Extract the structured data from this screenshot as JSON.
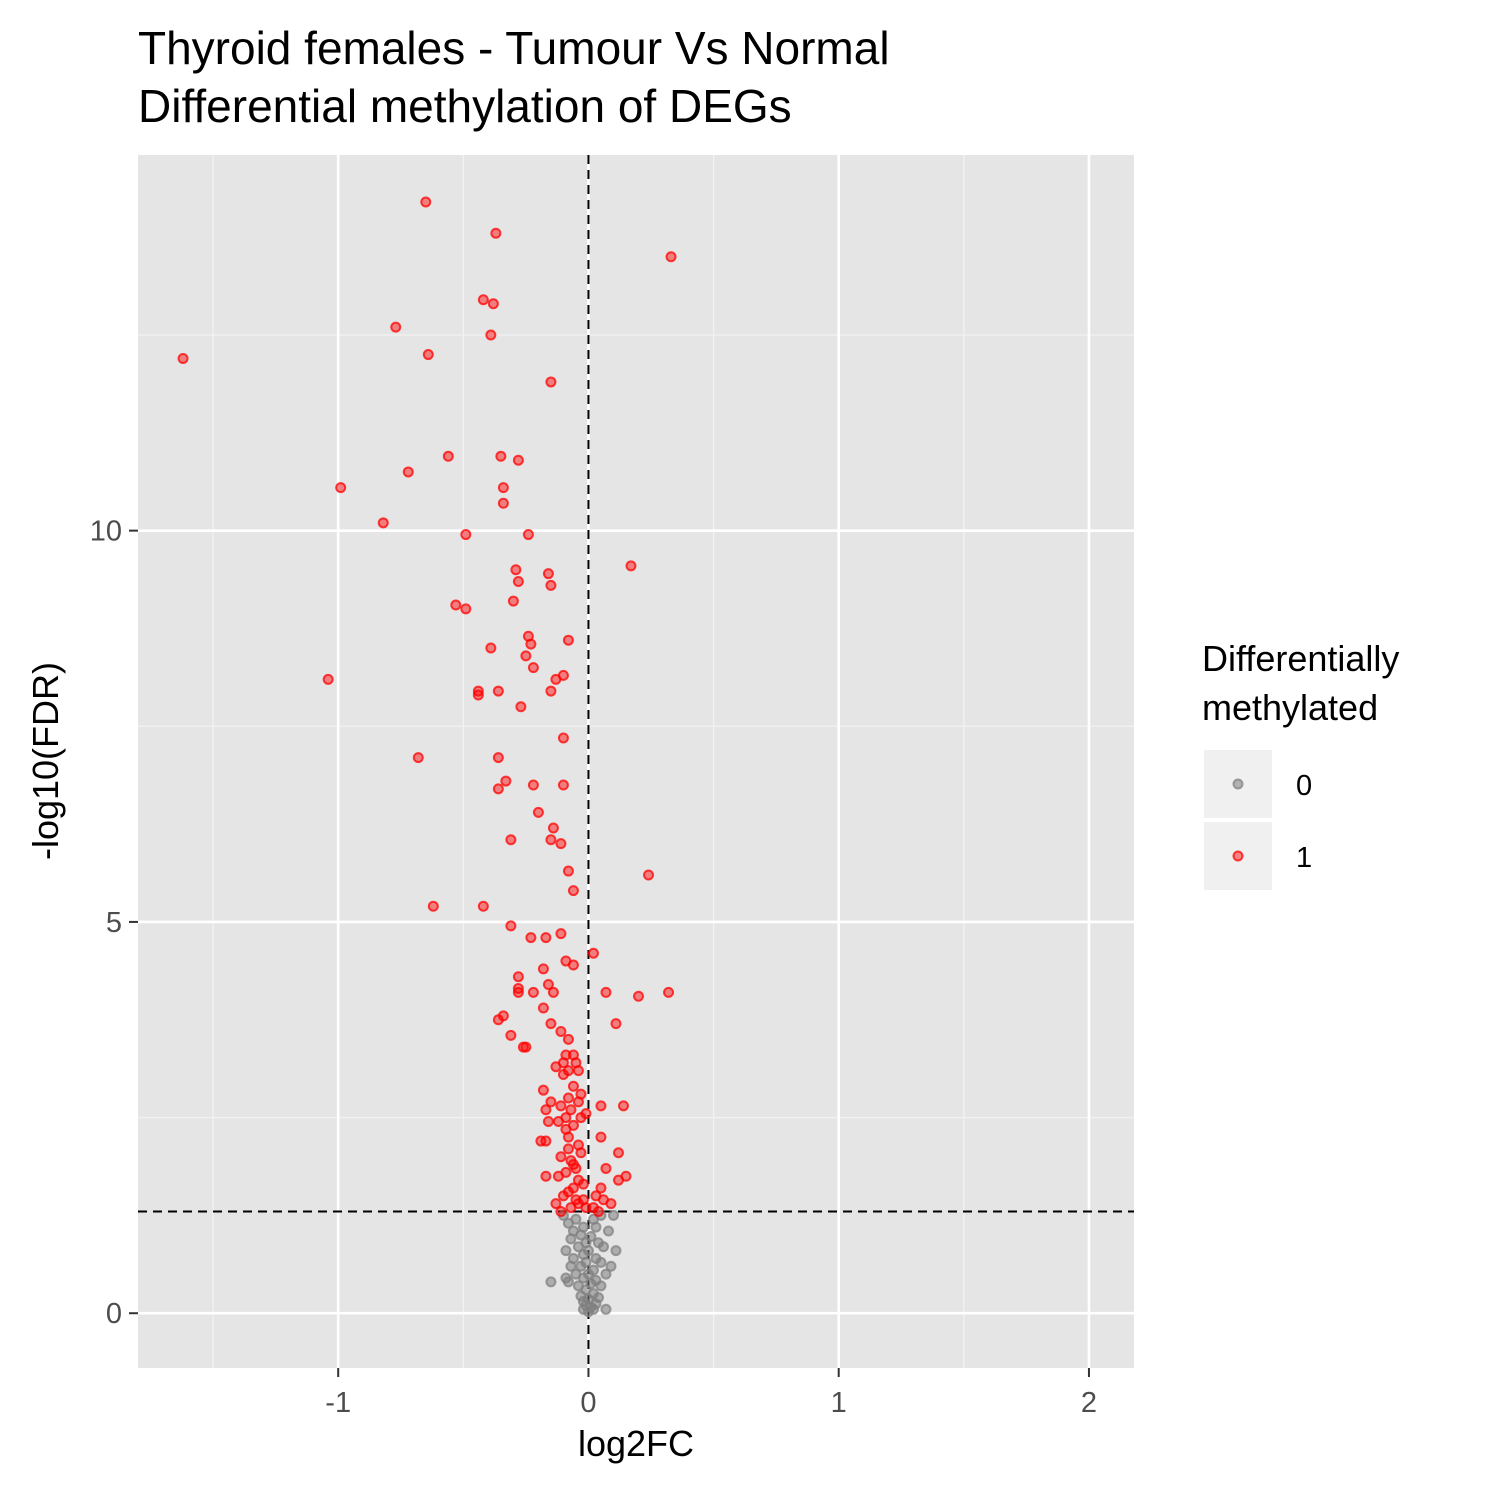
{
  "chart_data": {
    "type": "scatter",
    "title": "Thyroid females - Tumour Vs Normal",
    "subtitle": "Differential methylation of DEGs",
    "xlabel": "log2FC",
    "ylabel": "-log10(FDR)",
    "xlim": [
      -1.8,
      2.18
    ],
    "ylim": [
      -0.7,
      14.8
    ],
    "x_ticks": [
      -1,
      0,
      1,
      2
    ],
    "x_tick_labels": [
      "-1",
      "0",
      "1",
      "2"
    ],
    "y_ticks": [
      0,
      5,
      10
    ],
    "y_tick_labels": [
      "0",
      "5",
      "10"
    ],
    "x_minor_ticks": [
      -1.5,
      -0.5,
      0.5,
      1.5
    ],
    "y_minor_ticks": [
      2.5,
      7.5,
      12.5
    ],
    "reference_lines": {
      "vertical_x": 0,
      "horizontal_y": 1.3
    },
    "grid": true,
    "legend": {
      "title_line1": "Differentially",
      "title_line2": "methylated",
      "placement": "right",
      "entries": [
        {
          "label": "0",
          "color": "#808080"
        },
        {
          "label": "1",
          "color": "#ff0000"
        }
      ]
    },
    "series": [
      {
        "name": "1",
        "color": "#ff0000",
        "points": [
          [
            -0.65,
            14.2
          ],
          [
            -0.37,
            13.8
          ],
          [
            0.33,
            13.5
          ],
          [
            -0.42,
            12.95
          ],
          [
            -0.38,
            12.9
          ],
          [
            -0.77,
            12.6
          ],
          [
            -0.39,
            12.5
          ],
          [
            -1.62,
            12.2
          ],
          [
            -0.64,
            12.25
          ],
          [
            -0.15,
            11.9
          ],
          [
            -0.56,
            10.95
          ],
          [
            -0.35,
            10.95
          ],
          [
            -0.28,
            10.9
          ],
          [
            -0.72,
            10.75
          ],
          [
            -0.99,
            10.55
          ],
          [
            -0.34,
            10.55
          ],
          [
            -0.34,
            10.35
          ],
          [
            -0.82,
            10.1
          ],
          [
            -0.49,
            9.95
          ],
          [
            -0.24,
            9.95
          ],
          [
            0.17,
            9.55
          ],
          [
            -0.29,
            9.5
          ],
          [
            -0.16,
            9.45
          ],
          [
            -0.28,
            9.35
          ],
          [
            -0.15,
            9.3
          ],
          [
            -0.3,
            9.1
          ],
          [
            -0.53,
            9.05
          ],
          [
            -0.49,
            9.0
          ],
          [
            -0.24,
            8.65
          ],
          [
            -0.08,
            8.6
          ],
          [
            -0.23,
            8.55
          ],
          [
            -0.39,
            8.5
          ],
          [
            -0.25,
            8.4
          ],
          [
            -0.22,
            8.25
          ],
          [
            -0.1,
            8.15
          ],
          [
            -0.13,
            8.1
          ],
          [
            -1.04,
            8.1
          ],
          [
            -0.44,
            7.95
          ],
          [
            -0.36,
            7.95
          ],
          [
            -0.15,
            7.95
          ],
          [
            -0.44,
            7.9
          ],
          [
            -0.27,
            7.75
          ],
          [
            -0.1,
            7.35
          ],
          [
            -0.68,
            7.1
          ],
          [
            -0.36,
            7.1
          ],
          [
            -0.33,
            6.8
          ],
          [
            -0.22,
            6.75
          ],
          [
            -0.1,
            6.75
          ],
          [
            -0.36,
            6.7
          ],
          [
            -0.2,
            6.4
          ],
          [
            -0.14,
            6.2
          ],
          [
            -0.31,
            6.05
          ],
          [
            -0.15,
            6.05
          ],
          [
            -0.11,
            6.0
          ],
          [
            -0.08,
            5.65
          ],
          [
            0.24,
            5.6
          ],
          [
            -0.06,
            5.4
          ],
          [
            -0.62,
            5.2
          ],
          [
            -0.42,
            5.2
          ],
          [
            -0.31,
            4.95
          ],
          [
            -0.23,
            4.8
          ],
          [
            -0.17,
            4.8
          ],
          [
            -0.11,
            4.85
          ],
          [
            0.02,
            4.6
          ],
          [
            -0.09,
            4.5
          ],
          [
            -0.06,
            4.45
          ],
          [
            -0.18,
            4.4
          ],
          [
            -0.28,
            4.3
          ],
          [
            -0.16,
            4.2
          ],
          [
            -0.28,
            4.15
          ],
          [
            -0.28,
            4.1
          ],
          [
            -0.22,
            4.1
          ],
          [
            -0.14,
            4.1
          ],
          [
            0.07,
            4.1
          ],
          [
            0.2,
            4.05
          ],
          [
            0.32,
            4.1
          ],
          [
            -0.18,
            3.9
          ],
          [
            -0.34,
            3.8
          ],
          [
            -0.36,
            3.75
          ],
          [
            -0.15,
            3.7
          ],
          [
            0.11,
            3.7
          ],
          [
            -0.11,
            3.6
          ],
          [
            -0.31,
            3.55
          ],
          [
            -0.08,
            3.5
          ],
          [
            -0.26,
            3.4
          ],
          [
            -0.25,
            3.4
          ],
          [
            -0.09,
            3.3
          ],
          [
            -0.06,
            3.3
          ],
          [
            -0.1,
            3.2
          ],
          [
            -0.05,
            3.2
          ],
          [
            -0.13,
            3.15
          ],
          [
            -0.08,
            3.1
          ],
          [
            -0.04,
            3.1
          ],
          [
            -0.1,
            3.05
          ],
          [
            -0.06,
            2.9
          ],
          [
            -0.03,
            2.8
          ],
          [
            -0.18,
            2.85
          ],
          [
            -0.08,
            2.75
          ],
          [
            -0.04,
            2.7
          ],
          [
            -0.15,
            2.7
          ],
          [
            -0.11,
            2.65
          ],
          [
            0.14,
            2.65
          ],
          [
            0.05,
            2.65
          ],
          [
            -0.17,
            2.6
          ],
          [
            -0.07,
            2.6
          ],
          [
            -0.01,
            2.55
          ],
          [
            -0.03,
            2.5
          ],
          [
            -0.09,
            2.5
          ],
          [
            -0.12,
            2.45
          ],
          [
            -0.16,
            2.45
          ],
          [
            -0.06,
            2.4
          ],
          [
            -0.09,
            2.35
          ],
          [
            -0.08,
            2.25
          ],
          [
            0.05,
            2.25
          ],
          [
            -0.19,
            2.2
          ],
          [
            -0.17,
            2.2
          ],
          [
            -0.04,
            2.15
          ],
          [
            -0.08,
            2.1
          ],
          [
            0.12,
            2.05
          ],
          [
            -0.03,
            2.05
          ],
          [
            -0.11,
            2.0
          ],
          [
            -0.07,
            1.95
          ],
          [
            -0.06,
            1.9
          ],
          [
            0.07,
            1.85
          ],
          [
            -0.05,
            1.85
          ],
          [
            -0.09,
            1.8
          ],
          [
            -0.12,
            1.75
          ],
          [
            -0.17,
            1.75
          ],
          [
            0.15,
            1.75
          ],
          [
            0.12,
            1.7
          ],
          [
            -0.04,
            1.7
          ],
          [
            -0.02,
            1.65
          ],
          [
            -0.06,
            1.6
          ],
          [
            0.05,
            1.6
          ],
          [
            -0.08,
            1.55
          ],
          [
            0.03,
            1.5
          ],
          [
            -0.1,
            1.5
          ],
          [
            -0.05,
            1.45
          ],
          [
            -0.02,
            1.45
          ],
          [
            0.06,
            1.45
          ],
          [
            -0.13,
            1.4
          ],
          [
            -0.04,
            1.4
          ],
          [
            0.02,
            1.35
          ],
          [
            -0.07,
            1.35
          ],
          [
            -0.11,
            1.3
          ],
          [
            0.09,
            1.4
          ],
          [
            -0.01,
            1.35
          ],
          [
            0.04,
            1.3
          ]
        ]
      },
      {
        "name": "0",
        "color": "#808080",
        "points": [
          [
            -0.1,
            1.25
          ],
          [
            -0.05,
            1.2
          ],
          [
            0.02,
            1.2
          ],
          [
            0.05,
            1.25
          ],
          [
            0.1,
            1.25
          ],
          [
            -0.08,
            1.15
          ],
          [
            -0.02,
            1.1
          ],
          [
            0.03,
            1.1
          ],
          [
            -0.06,
            1.05
          ],
          [
            0.08,
            1.05
          ],
          [
            -0.03,
            1.0
          ],
          [
            0.01,
            0.98
          ],
          [
            -0.07,
            0.95
          ],
          [
            -0.01,
            0.9
          ],
          [
            0.04,
            0.9
          ],
          [
            -0.04,
            0.85
          ],
          [
            0.06,
            0.85
          ],
          [
            -0.09,
            0.8
          ],
          [
            0.0,
            0.8
          ],
          [
            0.11,
            0.8
          ],
          [
            -0.02,
            0.75
          ],
          [
            0.03,
            0.7
          ],
          [
            -0.06,
            0.7
          ],
          [
            -0.01,
            0.65
          ],
          [
            0.05,
            0.65
          ],
          [
            -0.03,
            0.6
          ],
          [
            0.02,
            0.55
          ],
          [
            -0.05,
            0.5
          ],
          [
            0.0,
            0.5
          ],
          [
            0.07,
            0.5
          ],
          [
            -0.02,
            0.45
          ],
          [
            0.03,
            0.42
          ],
          [
            -0.08,
            0.4
          ],
          [
            -0.15,
            0.4
          ],
          [
            0.01,
            0.38
          ],
          [
            -0.04,
            0.35
          ],
          [
            0.05,
            0.35
          ],
          [
            -0.01,
            0.3
          ],
          [
            0.02,
            0.25
          ],
          [
            -0.03,
            0.22
          ],
          [
            0.04,
            0.2
          ],
          [
            0.0,
            0.18
          ],
          [
            -0.02,
            0.15
          ],
          [
            0.03,
            0.12
          ],
          [
            -0.01,
            0.1
          ],
          [
            0.01,
            0.08
          ],
          [
            0.02,
            0.05
          ],
          [
            -0.02,
            0.05
          ],
          [
            0.07,
            0.05
          ],
          [
            0.0,
            0.02
          ],
          [
            -0.07,
            0.6
          ],
          [
            0.09,
            0.6
          ],
          [
            -0.09,
            0.45
          ]
        ]
      }
    ]
  }
}
